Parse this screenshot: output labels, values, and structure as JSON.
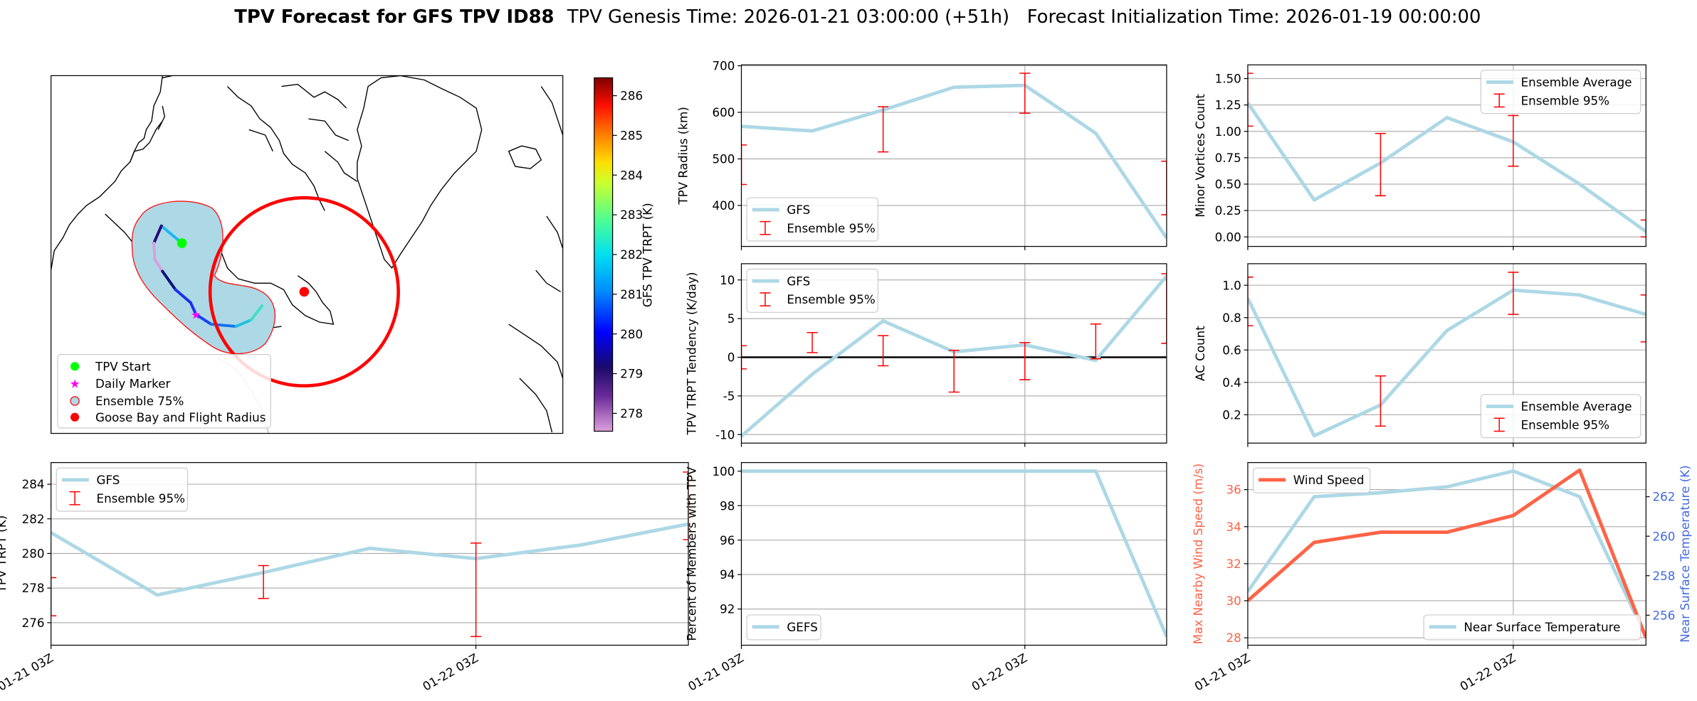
{
  "title": {
    "bold": "TPV Forecast for GFS TPV ID88",
    "rest": "TPV Genesis Time: 2026-01-21 03:00:00 (+51h)   Forecast Initialization Time: 2026-01-19 00:00:00"
  },
  "map": {
    "legend": [
      "TPV Start",
      "Daily Marker",
      "Ensemble 75%",
      "Goose Bay and Flight Radius"
    ],
    "colors": {
      "start": "#00ff00",
      "marker": "#ff00ff",
      "ensemble_fill": "#add8e6",
      "ensemble_edge": "#ff0000",
      "goose_bay": "#ff0000"
    },
    "colorbar": {
      "label": "GFS TPV TRPT (K)",
      "range": [
        277.55,
        286.45
      ],
      "ticks": [
        278,
        279,
        280,
        281,
        282,
        283,
        284,
        285,
        286
      ]
    }
  },
  "chart_data": [
    {
      "id": "radius",
      "type": "line",
      "ylabel": "TPV Radius (km)",
      "ylim": [
        312,
        702
      ],
      "yticks": [
        400,
        500,
        600,
        700
      ],
      "xlim": [
        0,
        36
      ],
      "x": [
        0,
        6,
        12,
        18,
        24,
        30,
        36
      ],
      "xticks": [
        {
          "x": 0,
          "label": "01-21 03Z"
        },
        {
          "x": 24,
          "label": "01-22 03Z"
        }
      ],
      "xticklabels": false,
      "series": [
        {
          "name": "GFS",
          "values": [
            570,
            560,
            605,
            654,
            658,
            555,
            330
          ],
          "color": "#add8e6"
        }
      ],
      "errorbars": {
        "name": "Ensemble 95%",
        "x": [
          0,
          12,
          24,
          36
        ],
        "lo": [
          445,
          515,
          598,
          380
        ],
        "hi": [
          530,
          612,
          684,
          495
        ],
        "color": "#ff0000"
      },
      "legends": [
        {
          "loc": "lower-left",
          "items": [
            "GFS",
            "Ensemble 95%"
          ]
        }
      ]
    },
    {
      "id": "tendency",
      "type": "line",
      "ylabel": "TPV TRPT Tendency (K/day)",
      "ylim": [
        -11.1,
        12.1
      ],
      "yticks": [
        -10,
        -5,
        0,
        5,
        10
      ],
      "xlim": [
        0,
        36
      ],
      "x": [
        0,
        6,
        12,
        18,
        24,
        30,
        36
      ],
      "xticks": [
        {
          "x": 0,
          "label": "01-21 03Z"
        },
        {
          "x": 24,
          "label": "01-22 03Z"
        }
      ],
      "xticklabels": false,
      "zero_line": true,
      "series": [
        {
          "name": "GFS",
          "values": [
            -10.2,
            -2.2,
            4.7,
            0.7,
            1.6,
            -0.4,
            10.5
          ],
          "color": "#add8e6"
        }
      ],
      "errorbars": {
        "name": "Ensemble 95%",
        "x": [
          0,
          6,
          12,
          18,
          24,
          30,
          36
        ],
        "lo": [
          -1.5,
          0.6,
          -1.1,
          -4.5,
          -2.9,
          -0.2,
          1.8
        ],
        "hi": [
          1.5,
          3.2,
          2.8,
          0.9,
          1.9,
          4.3,
          10.8
        ],
        "color": "#ff0000"
      },
      "legends": [
        {
          "loc": "upper-left",
          "items": [
            "GFS",
            "Ensemble 95%"
          ]
        }
      ]
    },
    {
      "id": "percent",
      "type": "line",
      "ylabel": "Percent of Members with TPV",
      "ylim": [
        89.9,
        100.5
      ],
      "yticks": [
        92,
        94,
        96,
        98,
        100
      ],
      "xlim": [
        0,
        36
      ],
      "x": [
        0,
        6,
        12,
        18,
        24,
        30,
        36
      ],
      "xticks": [
        {
          "x": 0,
          "label": "01-21 03Z"
        },
        {
          "x": 24,
          "label": "01-22 03Z"
        }
      ],
      "xticklabels": true,
      "series": [
        {
          "name": "GEFS",
          "values": [
            100,
            100,
            100,
            100,
            100,
            100,
            90.4
          ],
          "color": "#add8e6"
        }
      ],
      "legends": [
        {
          "loc": "lower-left",
          "items": [
            "GEFS"
          ]
        }
      ]
    },
    {
      "id": "minor",
      "type": "line",
      "ylabel": "Minor Vortices Count",
      "ylim": [
        -0.09,
        1.63
      ],
      "yticks": [
        0.0,
        0.25,
        0.5,
        0.75,
        1.0,
        1.25,
        1.5
      ],
      "ytickfmt": 2,
      "xlim": [
        0,
        36
      ],
      "x": [
        0,
        6,
        12,
        18,
        24,
        30,
        36
      ],
      "xticks": [
        {
          "x": 0,
          "label": "01-21 03Z"
        },
        {
          "x": 24,
          "label": "01-22 03Z"
        }
      ],
      "xticklabels": false,
      "series": [
        {
          "name": "Ensemble Average",
          "values": [
            1.27,
            0.35,
            0.7,
            1.13,
            0.9,
            0.5,
            0.05
          ],
          "color": "#add8e6"
        }
      ],
      "errorbars": {
        "name": "Ensemble 95%",
        "x": [
          0,
          12,
          24,
          36
        ],
        "lo": [
          1.05,
          0.39,
          0.67,
          0.0
        ],
        "hi": [
          1.55,
          0.98,
          1.15,
          0.16
        ],
        "color": "#ff0000"
      },
      "legends": [
        {
          "loc": "upper-right",
          "items": [
            "Ensemble Average",
            "Ensemble 95%"
          ]
        }
      ]
    },
    {
      "id": "ac",
      "type": "line",
      "ylabel": "AC Count",
      "ylim": [
        0.025,
        1.133
      ],
      "yticks": [
        0.2,
        0.4,
        0.6,
        0.8,
        1.0
      ],
      "ytickfmt": 1,
      "xlim": [
        0,
        36
      ],
      "x": [
        0,
        6,
        12,
        18,
        24,
        30,
        36
      ],
      "xticks": [
        {
          "x": 0,
          "label": "01-21 03Z"
        },
        {
          "x": 24,
          "label": "01-22 03Z"
        }
      ],
      "xticklabels": false,
      "series": [
        {
          "name": "Ensemble Average",
          "values": [
            0.92,
            0.07,
            0.26,
            0.72,
            0.97,
            0.94,
            0.82
          ],
          "color": "#add8e6"
        }
      ],
      "errorbars": {
        "name": "Ensemble 95%",
        "x": [
          0,
          12,
          24,
          36
        ],
        "lo": [
          0.75,
          0.13,
          0.82,
          0.65
        ],
        "hi": [
          1.05,
          0.44,
          1.08,
          0.94
        ],
        "color": "#ff0000"
      },
      "legends": [
        {
          "loc": "lower-right",
          "items": [
            "Ensemble Average",
            "Ensemble 95%"
          ]
        }
      ]
    },
    {
      "id": "wind",
      "type": "line",
      "ylabel": "Max Nearby Wind Speed (m/s)",
      "ylabel_color": "#ff6347",
      "ylim": [
        27.6,
        37.46
      ],
      "yticks": [
        28,
        30,
        32,
        34,
        36
      ],
      "xlim": [
        0,
        36
      ],
      "x": [
        0,
        6,
        12,
        18,
        24,
        30,
        36
      ],
      "xticks": [
        {
          "x": 0,
          "label": "01-21 03Z"
        },
        {
          "x": 24,
          "label": "01-22 03Z"
        }
      ],
      "xticklabels": true,
      "series": [
        {
          "name": "Wind Speed",
          "values": [
            30.0,
            33.15,
            33.7,
            33.7,
            34.6,
            37.05,
            28.0
          ],
          "color": "#ff6347"
        },
        {
          "name": "Near Surface Temperature",
          "values": [
            257.2,
            262.0,
            262.2,
            262.5,
            263.3,
            262.0,
            254.9
          ],
          "color": "#add8e6",
          "axis": "right"
        }
      ],
      "right_axis": {
        "label": "Near Surface Temperature (K)",
        "color": "#4169e1",
        "ylim": [
          254.48,
          263.73
        ],
        "yticks": [
          256,
          258,
          260,
          262
        ]
      },
      "legends": [
        {
          "loc": "upper-left",
          "items": [
            "Wind Speed"
          ]
        },
        {
          "loc": "lower-right",
          "items": [
            "Near Surface Temperature"
          ]
        }
      ]
    },
    {
      "id": "trpt",
      "type": "line",
      "ylabel": "TPV TRPT (K)",
      "ylim": [
        274.7,
        285.25
      ],
      "yticks": [
        276,
        278,
        280,
        282,
        284
      ],
      "xlim": [
        0,
        36
      ],
      "x": [
        0,
        6,
        12,
        18,
        24,
        30,
        36
      ],
      "xticks": [
        {
          "x": 0,
          "label": "01-21 03Z"
        },
        {
          "x": 24,
          "label": "01-22 03Z"
        }
      ],
      "xticklabels": true,
      "series": [
        {
          "name": "GFS",
          "values": [
            281.2,
            277.6,
            278.9,
            280.3,
            279.7,
            280.5,
            281.7
          ],
          "color": "#add8e6"
        }
      ],
      "errorbars": {
        "name": "Ensemble 95%",
        "x": [
          0,
          12,
          24,
          36
        ],
        "lo": [
          276.4,
          277.4,
          275.2,
          280.8
        ],
        "hi": [
          278.6,
          279.3,
          280.6,
          284.7
        ],
        "color": "#ff0000"
      },
      "legends": [
        {
          "loc": "upper-left",
          "items": [
            "GFS",
            "Ensemble 95%"
          ]
        }
      ]
    }
  ]
}
